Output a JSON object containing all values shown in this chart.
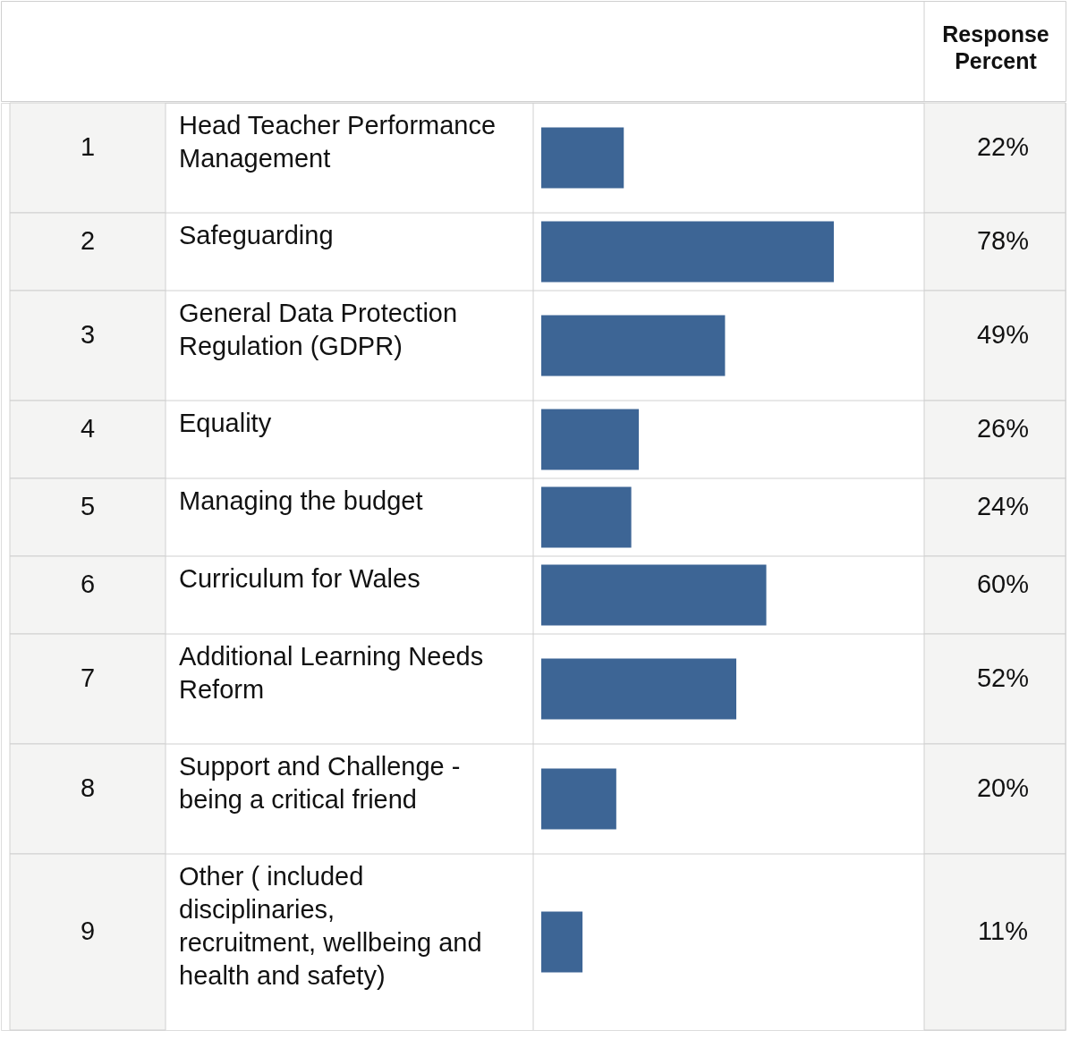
{
  "chart_data": {
    "type": "bar",
    "orientation": "horizontal",
    "data_labels": true,
    "xlabel": "Response Percent",
    "categories": [
      "Head Teacher Performance Management",
      "Safeguarding",
      "General Data Protection Regulation (GDPR)",
      "Equality",
      "Managing the budget",
      "Curriculum for Wales",
      "Additional Learning Needs Reform",
      "Support and Challenge - being a critical friend",
      "Other ( included disciplinaries, recruitment, wellbeing and health and safety)"
    ],
    "values": [
      22,
      78,
      49,
      26,
      24,
      60,
      52,
      20,
      11
    ],
    "value_labels": [
      "22%",
      "78%",
      "49%",
      "26%",
      "24%",
      "60%",
      "52%",
      "20%",
      "11%"
    ],
    "color": "#3d6595",
    "annotations": [
      "1",
      "2",
      "3",
      "4",
      "5",
      "6",
      "7",
      "8",
      "9"
    ]
  }
}
